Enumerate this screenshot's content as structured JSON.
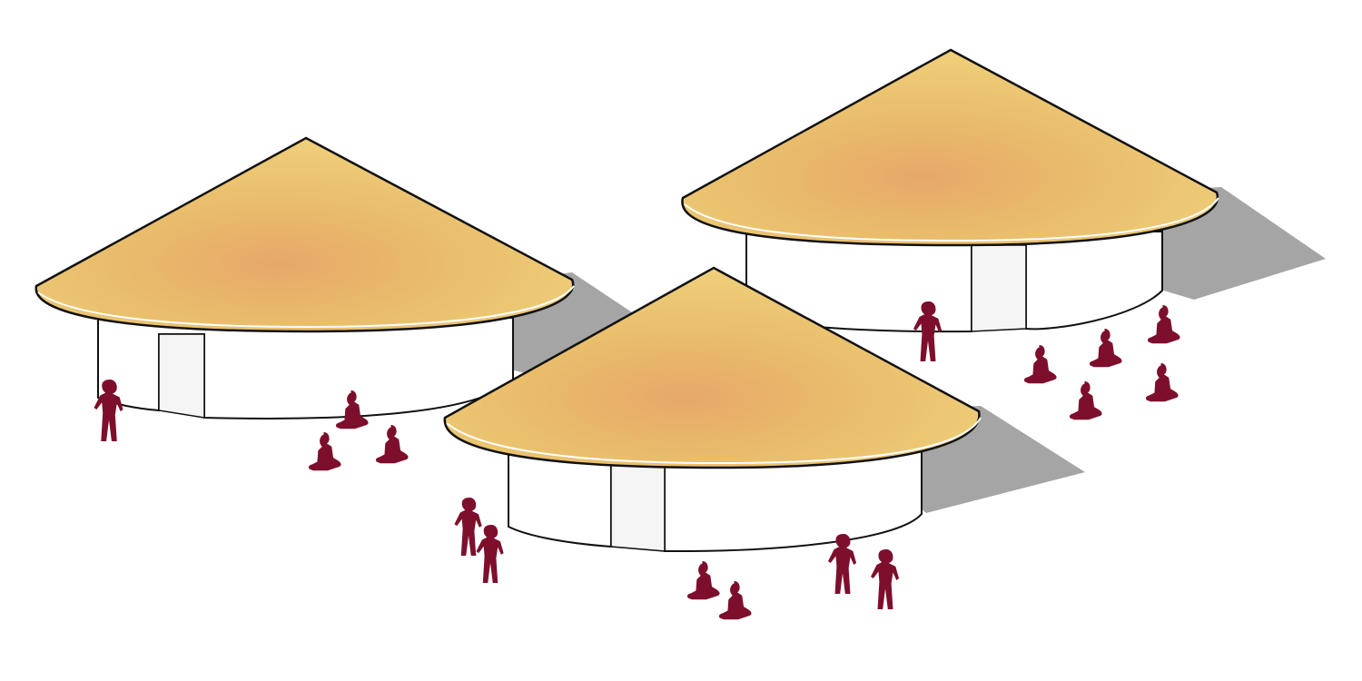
{
  "scene": {
    "huts": [
      {
        "id": "left",
        "people": {
          "standing": 1,
          "sitting": 3
        }
      },
      {
        "id": "right",
        "people": {
          "standing": 1,
          "sitting": 5
        }
      },
      {
        "id": "center",
        "people": {
          "standing": 4,
          "sitting": 2
        }
      }
    ]
  },
  "colors": {
    "background": "#ffffff",
    "roof_light": "#f0d27a",
    "roof_mid": "#e6b563",
    "roof_warm": "#e7a56a",
    "wall": "#ffffff",
    "outline": "#111111",
    "shadow": "#9e9e9e",
    "figure": "#7d0f2c"
  }
}
